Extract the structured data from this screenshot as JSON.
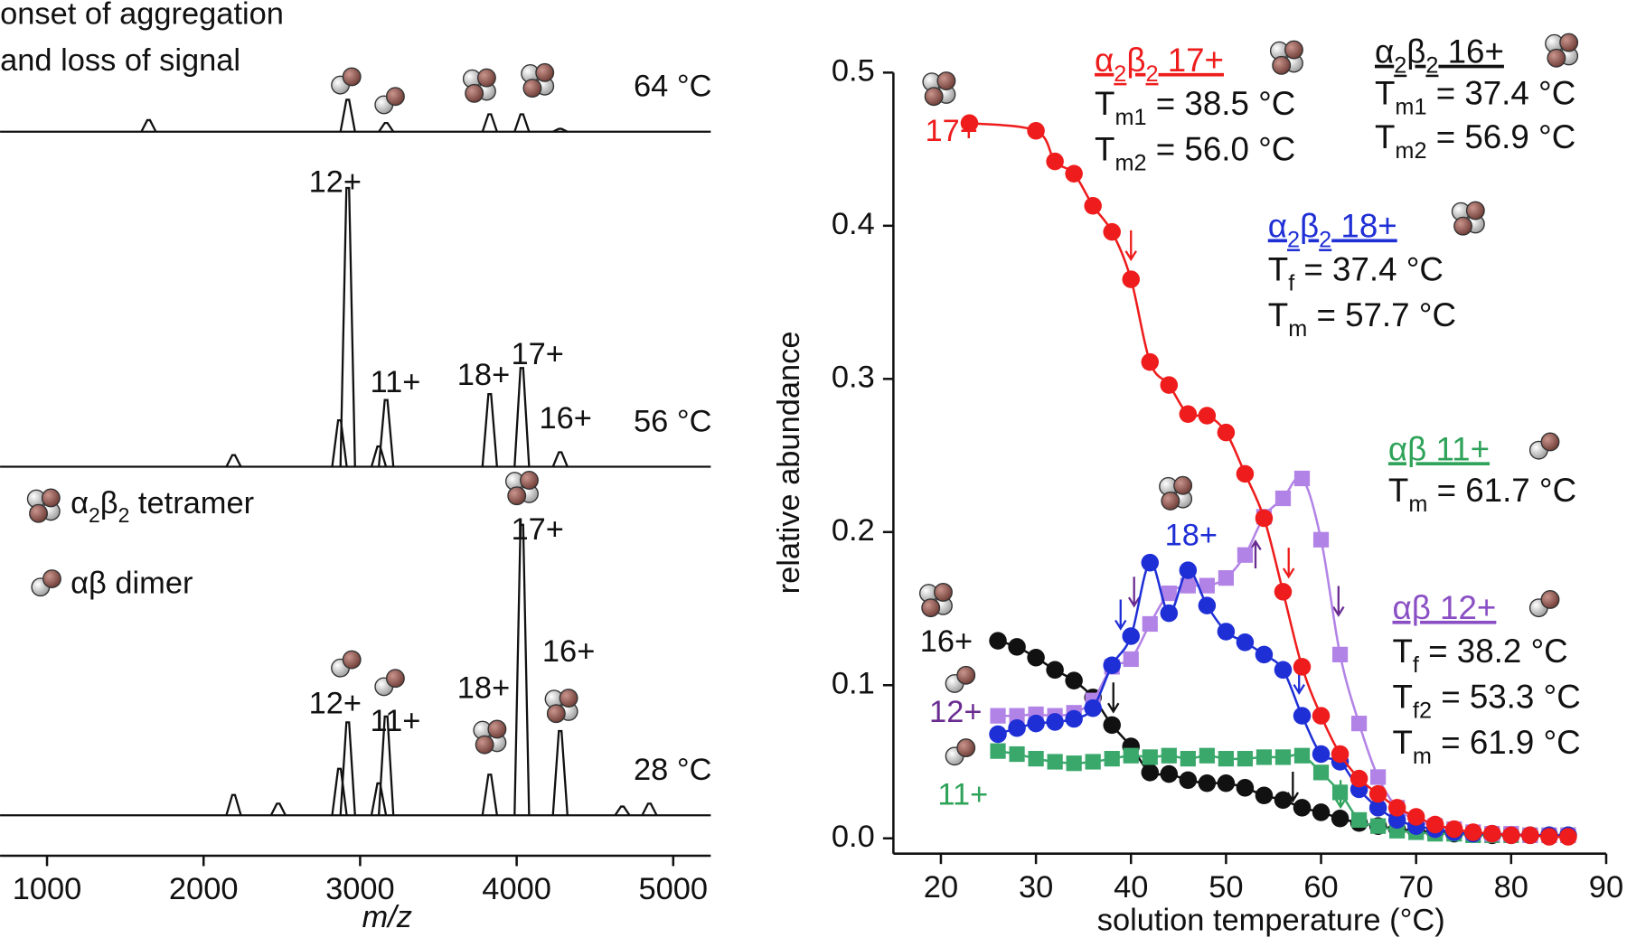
{
  "chart_data": [
    {
      "type": "spectrum",
      "notes": [
        "onset of aggregation",
        "and loss of signal"
      ],
      "xlabel": "m/z",
      "xlim": [
        700,
        5240
      ],
      "xticks": [
        1000,
        2000,
        3000,
        4000,
        5000
      ],
      "legend": [
        [
          "α",
          "2",
          "β",
          "2",
          " tetramer"
        ],
        [
          "αβ dimer"
        ]
      ],
      "traces": [
        {
          "name": "64 °C",
          "peaks_x": [
            1649,
            2921,
            3166,
            3828,
            4033,
            4278
          ],
          "heights": [
            0.04,
            0.11,
            0.03,
            0.06,
            0.06,
            0.01
          ],
          "peak_labels": [
            null,
            null,
            null,
            null,
            null,
            null
          ]
        },
        {
          "name": "56 °C",
          "peaks_x": [
            2192,
            2868,
            2921,
            3119,
            3166,
            3828,
            4033,
            4278
          ],
          "heights": [
            0.04,
            0.16,
            0.96,
            0.07,
            0.23,
            0.25,
            0.34,
            0.05
          ],
          "peak_labels": [
            null,
            null,
            "12+",
            null,
            "11+",
            "18+",
            "17+",
            "16+"
          ]
        },
        {
          "name": "28 °C",
          "peaks_x": [
            2192,
            2477,
            2868,
            2921,
            3119,
            3166,
            3828,
            4033,
            4278,
            4675,
            4848
          ],
          "heights": [
            0.07,
            0.04,
            0.16,
            0.32,
            0.11,
            0.34,
            0.14,
            1.0,
            0.29,
            0.03,
            0.04
          ],
          "peak_labels": [
            null,
            null,
            null,
            "12+",
            null,
            "11+",
            "18+",
            "17+",
            "16+",
            null,
            null
          ]
        }
      ]
    },
    {
      "type": "scatter",
      "xlabel": "solution temperature (°C)",
      "ylabel": "relative abundance",
      "xlim": [
        15,
        90
      ],
      "ylim": [
        -0.01,
        0.5
      ],
      "xticks": [
        20,
        30,
        40,
        50,
        60,
        70,
        80,
        90
      ],
      "yticks": [
        {
          "value": 0,
          "label": "0.0"
        },
        0.1,
        0.2,
        0.3,
        0.4,
        0.5
      ],
      "series": [
        {
          "name": "16+",
          "color": "#111111",
          "label_color": "#111111",
          "marker": "circle",
          "x": [
            26,
            28,
            30,
            32,
            34,
            36,
            38,
            40,
            42,
            44,
            46,
            48,
            50,
            52,
            54,
            56,
            58,
            60,
            62,
            64,
            66,
            68,
            70,
            72,
            74,
            76,
            78,
            80,
            82,
            84,
            86
          ],
          "values": [
            0.129,
            0.125,
            0.118,
            0.11,
            0.103,
            0.092,
            0.074,
            0.06,
            0.043,
            0.042,
            0.038,
            0.036,
            0.036,
            0.033,
            0.028,
            0.025,
            0.02,
            0.017,
            0.013,
            0.01,
            0.008,
            0.006,
            0.005,
            0.004,
            0.003,
            0.003,
            0.002,
            0.002,
            0.002,
            0.002,
            0.002
          ]
        },
        {
          "name": "11+",
          "color": "#3aa86b",
          "label_color": "#2fa35a",
          "marker": "square",
          "x": [
            26,
            28,
            30,
            32,
            34,
            36,
            38,
            40,
            42,
            44,
            46,
            48,
            50,
            52,
            54,
            56,
            58,
            60,
            62,
            64,
            66,
            68,
            70,
            72,
            74,
            76,
            78,
            80,
            82,
            84,
            86
          ],
          "values": [
            0.057,
            0.055,
            0.052,
            0.05,
            0.049,
            0.05,
            0.052,
            0.054,
            0.053,
            0.054,
            0.052,
            0.054,
            0.052,
            0.052,
            0.053,
            0.053,
            0.054,
            0.043,
            0.03,
            0.012,
            0.008,
            0.005,
            0.004,
            0.003,
            0.003,
            0.002,
            0.002,
            0.002,
            0.002,
            0.002,
            0.002
          ]
        },
        {
          "name": "12+",
          "color": "#b283e6",
          "label_color": "#6a2c91",
          "marker": "square",
          "x": [
            26,
            28,
            30,
            32,
            34,
            36,
            38,
            40,
            42,
            44,
            46,
            48,
            50,
            52,
            54,
            56,
            58,
            60,
            62,
            64,
            66,
            68,
            70,
            72,
            74,
            76,
            78,
            80,
            82,
            84,
            86
          ],
          "values": [
            0.08,
            0.08,
            0.081,
            0.08,
            0.082,
            0.09,
            0.112,
            0.117,
            0.14,
            0.16,
            0.165,
            0.165,
            0.17,
            0.185,
            0.21,
            0.222,
            0.235,
            0.195,
            0.12,
            0.075,
            0.04,
            0.02,
            0.012,
            0.008,
            0.006,
            0.004,
            0.003,
            0.003,
            0.002,
            0.002,
            0.002
          ]
        },
        {
          "name": "18+",
          "color": "#1f2fd6",
          "label_color": "#1f2fd6",
          "marker": "circle",
          "x": [
            26,
            28,
            30,
            32,
            34,
            36,
            38,
            40,
            42,
            44,
            46,
            48,
            50,
            52,
            54,
            56,
            58,
            60,
            62,
            64,
            66,
            68,
            70,
            72,
            74,
            76,
            78,
            80,
            82,
            84,
            86
          ],
          "values": [
            0.068,
            0.072,
            0.075,
            0.076,
            0.078,
            0.085,
            0.113,
            0.132,
            0.18,
            0.147,
            0.175,
            0.152,
            0.135,
            0.128,
            0.12,
            0.11,
            0.08,
            0.055,
            0.05,
            0.032,
            0.02,
            0.012,
            0.008,
            0.006,
            0.004,
            0.003,
            0.003,
            0.002,
            0.002,
            0.002,
            0.002
          ]
        },
        {
          "name": "17+",
          "color": "#ee1c1c",
          "label_color": "#ee1c1c",
          "marker": "circle",
          "x": [
            23,
            30,
            32,
            34,
            36,
            38,
            40,
            42,
            44,
            46,
            48,
            50,
            52,
            54,
            56,
            58,
            60,
            62,
            64,
            66,
            68,
            70,
            72,
            74,
            76,
            78,
            80,
            82,
            84,
            86
          ],
          "values": [
            0.467,
            0.462,
            0.442,
            0.434,
            0.413,
            0.396,
            0.365,
            0.311,
            0.296,
            0.277,
            0.276,
            0.265,
            0.238,
            0.209,
            0.161,
            0.112,
            0.08,
            0.055,
            0.039,
            0.029,
            0.02,
            0.014,
            0.009,
            0.006,
            0.004,
            0.003,
            0.002,
            0.002,
            0.001,
            0.001
          ]
        }
      ],
      "annotations": [
        {
          "color": "#ee1c1c",
          "title": [
            "α",
            "2",
            "β",
            "2",
            " 17+"
          ],
          "lines": [
            [
              "T",
              "m1",
              " = 38.5 °C"
            ],
            [
              "T",
              "m2",
              " = 56.0 °C"
            ]
          ]
        },
        {
          "color": "#111111",
          "title": [
            "α",
            "2",
            "β",
            "2",
            " 16+"
          ],
          "lines": [
            [
              "T",
              "m1",
              " = 37.4 °C"
            ],
            [
              "T",
              "m2",
              " = 56.9 °C"
            ]
          ]
        },
        {
          "color": "#1f2fd6",
          "title": [
            "α",
            "2",
            "β",
            "2",
            " 18+"
          ],
          "lines": [
            [
              "T",
              "f",
              " = 37.4 °C"
            ],
            [
              "T",
              "m",
              " = 57.7 °C"
            ]
          ]
        },
        {
          "color": "#2fa35a",
          "title": [
            "αβ 11+"
          ],
          "lines": [
            [
              "T",
              "m",
              " = 61.7 °C"
            ]
          ]
        },
        {
          "color": "#8a4fc4",
          "title": [
            "αβ 12+"
          ],
          "lines": [
            [
              "T",
              "f",
              " = 38.2 °C"
            ],
            [
              "T",
              "f2",
              " = 53.3 °C"
            ],
            [
              "T",
              "m",
              " = 61.9 °C"
            ]
          ]
        }
      ]
    }
  ]
}
